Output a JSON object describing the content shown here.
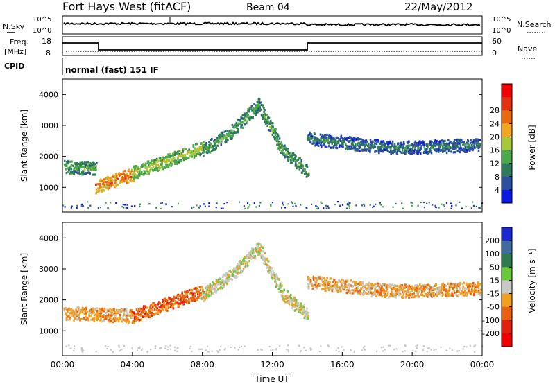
{
  "header": {
    "station": "Fort Hays West (fitACF)",
    "beam": "Beam 04",
    "date": "22/May/2012"
  },
  "noise_panel": {
    "left_label": "N.Sky",
    "right_label": "N.Search",
    "left_ticks": [
      "10^5",
      "10^0"
    ],
    "right_ticks": [
      "10^5",
      "10^0"
    ]
  },
  "freq_panel": {
    "left_label_1": "Freq.",
    "left_label_2": "[MHz]",
    "right_label": "Nave",
    "left_ticks": [
      "18",
      "8"
    ],
    "right_ticks": [
      "60",
      "0"
    ]
  },
  "cpid_panel": {
    "label": "CPID",
    "mode": "normal (fast) 151 IF"
  },
  "x_axis": {
    "label": "Time UT",
    "ticks": [
      "00:00",
      "04:00",
      "08:00",
      "12:00",
      "16:00",
      "20:00",
      "00:00"
    ]
  },
  "colors": {
    "power": [
      "#0a1ae0",
      "#2e4fa0",
      "#2f7a5a",
      "#4da84a",
      "#a8c83a",
      "#f0a820",
      "#e86a10",
      "#e23010",
      "#f00000"
    ],
    "velocity": [
      "#1a2ad0",
      "#3f6b9e",
      "#2f7a4e",
      "#6ac83a",
      "#c8c8c4",
      "#f0a020",
      "#e86010",
      "#e02010",
      "#f00000"
    ]
  },
  "chart_data": [
    {
      "type": "heatmap",
      "panel": "power",
      "x": "Time UT",
      "y": "Slant Range [km]",
      "xlim": [
        "00:00",
        "24:00"
      ],
      "ylim": [
        200,
        4500
      ],
      "yticks": [
        1000,
        2000,
        3000,
        4000
      ],
      "colorbar_label": "Power [dB]",
      "colorbar_ticks": [
        4,
        8,
        12,
        16,
        20,
        24,
        28
      ],
      "scatter_bands": [
        {
          "start_hour": 0.0,
          "end_hour": 1.9,
          "center_km": [
            1700,
            1650,
            1650
          ],
          "dominant_db": 12
        },
        {
          "start_hour": 1.9,
          "end_hour": 4.0,
          "center_km": [
            1050,
            1250,
            1450
          ],
          "dominant_db": 24
        },
        {
          "start_hour": 4.0,
          "end_hour": 8.0,
          "center_km": [
            1500,
            1900,
            2300
          ],
          "dominant_db": 16
        },
        {
          "start_hour": 8.0,
          "end_hour": 11.2,
          "center_km": [
            2200,
            2800,
            3700
          ],
          "dominant_db": 12
        },
        {
          "start_hour": 11.2,
          "end_hour": 14.0,
          "center_km": [
            3700,
            2200,
            1550
          ],
          "dominant_db": 12
        },
        {
          "start_hour": 14.0,
          "end_hour": 24.0,
          "center_km": [
            2600,
            2300,
            2400
          ],
          "dominant_db": 8
        }
      ]
    },
    {
      "type": "heatmap",
      "panel": "velocity",
      "x": "Time UT",
      "y": "Slant Range [km]",
      "xlim": [
        "00:00",
        "24:00"
      ],
      "ylim": [
        200,
        4500
      ],
      "yticks": [
        1000,
        2000,
        3000,
        4000
      ],
      "colorbar_label": "Velocity [m s⁻¹]",
      "colorbar_ticks": [
        200,
        100,
        50,
        15,
        -15,
        -50,
        -100,
        -200
      ],
      "scatter_bands": [
        {
          "start_hour": 0.0,
          "end_hour": 4.0,
          "center_km": [
            1600,
            1550,
            1500
          ],
          "dominant_ms": -15
        },
        {
          "start_hour": 4.0,
          "end_hour": 8.0,
          "center_km": [
            1500,
            1900,
            2300
          ],
          "dominant_ms": -50
        },
        {
          "start_hour": 8.0,
          "end_hour": 11.2,
          "center_km": [
            2200,
            2800,
            3700
          ],
          "dominant_ms": 15
        },
        {
          "start_hour": 11.2,
          "end_hour": 14.0,
          "center_km": [
            3700,
            2200,
            1550
          ],
          "dominant_ms": 15
        },
        {
          "start_hour": 14.0,
          "end_hour": 24.0,
          "center_km": [
            2600,
            2300,
            2400
          ],
          "dominant_ms": -15
        }
      ]
    }
  ]
}
